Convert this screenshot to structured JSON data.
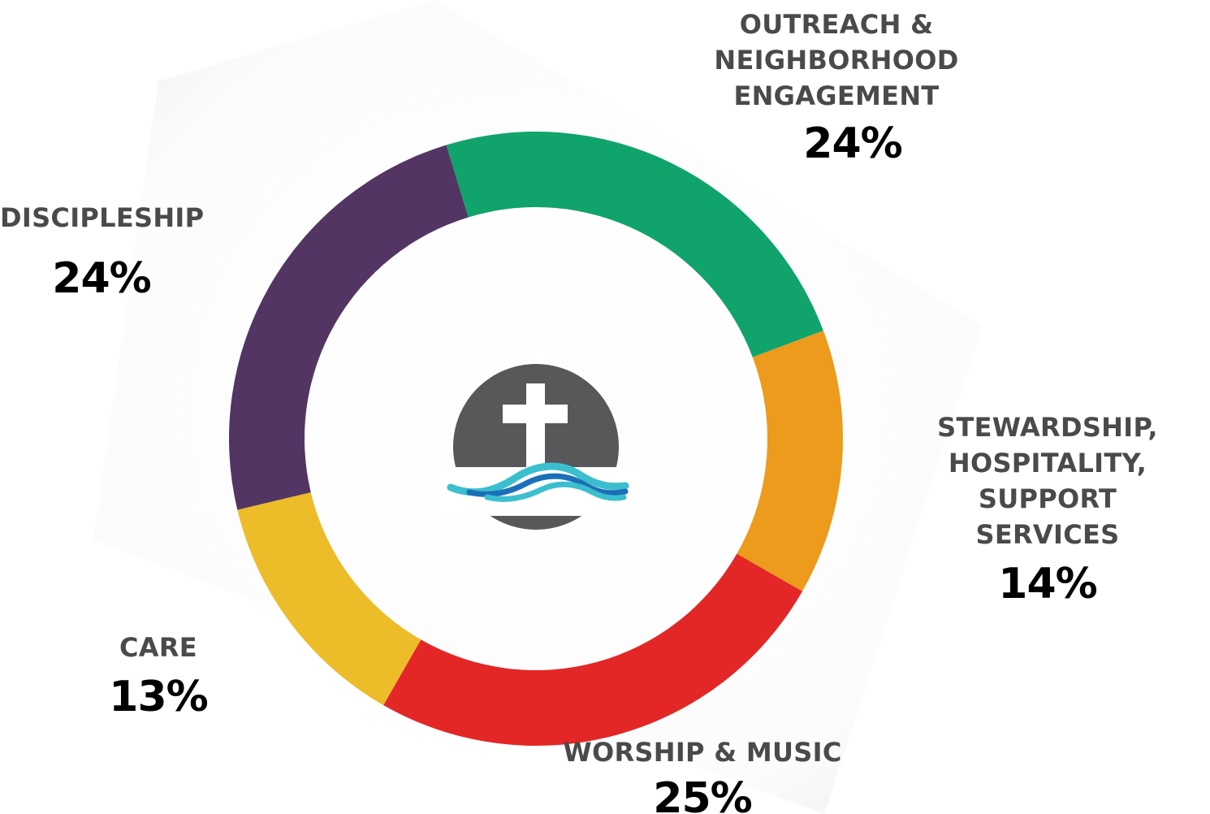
{
  "colors": {
    "outreach": "#10a36b",
    "stewardship": "#ec9b1d",
    "worship": "#e32726",
    "care": "#ecbc29",
    "discipleship": "#533563",
    "logo_circle": "#58585a",
    "logo_cross": "#ffffff",
    "wave_light": "#3bbfce",
    "wave_dark": "#1a6fb8"
  },
  "logo": {
    "icon": "cross-over-water-icon"
  },
  "chart_data": {
    "type": "pie",
    "variant": "donut",
    "categories": [
      "OUTREACH & NEIGHBORHOOD ENGAGEMENT",
      "STEWARDSHIP, HOSPITALITY, SUPPORT SERVICES",
      "WORSHIP & MUSIC",
      "CARE",
      "DISCIPLESHIP"
    ],
    "values": [
      24,
      14,
      25,
      13,
      24
    ],
    "value_labels": [
      "24%",
      "14%",
      "25%",
      "13%",
      "24%"
    ],
    "label_lines": [
      [
        "OUTREACH &",
        "NEIGHBORHOOD",
        "ENGAGEMENT"
      ],
      [
        "STEWARDSHIP,",
        "HOSPITALITY, SUPPORT",
        "SERVICES"
      ],
      [
        "WORSHIP & MUSIC"
      ],
      [
        "CARE"
      ],
      [
        "DISCIPLESHIP"
      ]
    ],
    "start_angle_deg": -17,
    "direction": "clockwise",
    "legend": "none",
    "center_logo": true
  }
}
